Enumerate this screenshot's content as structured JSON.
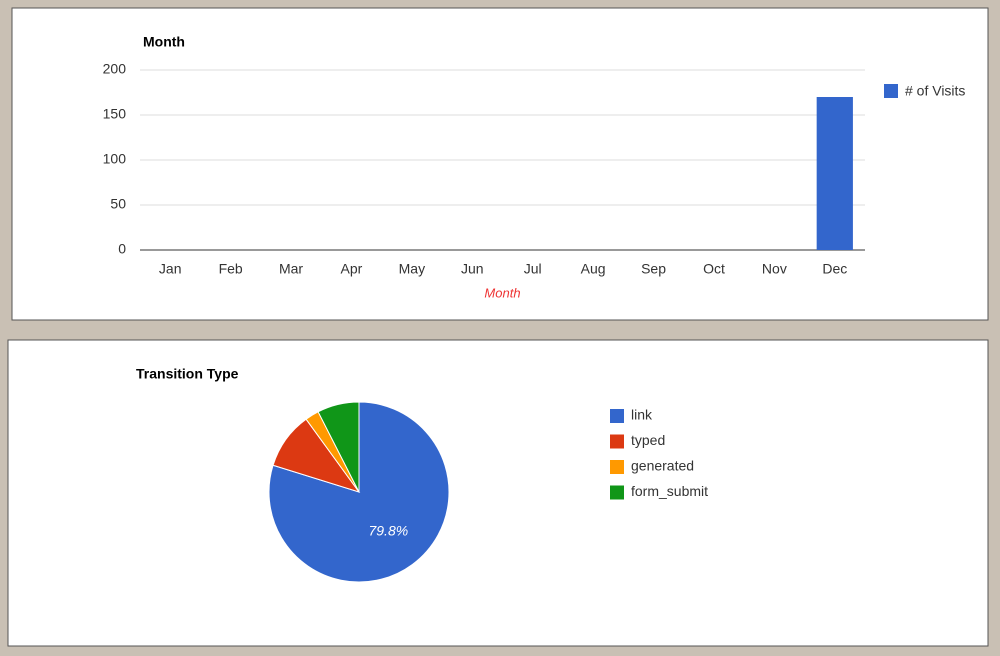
{
  "chart_data": [
    {
      "type": "bar",
      "title": "Month",
      "x_label": "Month",
      "categories": [
        "Jan",
        "Feb",
        "Mar",
        "Apr",
        "May",
        "Jun",
        "Jul",
        "Aug",
        "Sep",
        "Oct",
        "Nov",
        "Dec"
      ],
      "series": [
        {
          "name": "# of Visits",
          "color": "#3366cc",
          "values": [
            0,
            0,
            0,
            0,
            0,
            0,
            0,
            0,
            0,
            0,
            0,
            170
          ]
        }
      ],
      "ylim": [
        0,
        200
      ],
      "yticks": [
        0,
        50,
        100,
        150,
        200
      ],
      "grid": true,
      "legend": "right"
    },
    {
      "type": "pie",
      "title": "Transition Type",
      "categories": [
        "link",
        "typed",
        "generated",
        "form_submit"
      ],
      "values": [
        79.8,
        10.2,
        2.5,
        7.5
      ],
      "value_labels": [
        "79.8%",
        null,
        null,
        null
      ],
      "colors": [
        "#3366cc",
        "#dc3912",
        "#ff9900",
        "#109618"
      ],
      "legend": "right"
    }
  ]
}
